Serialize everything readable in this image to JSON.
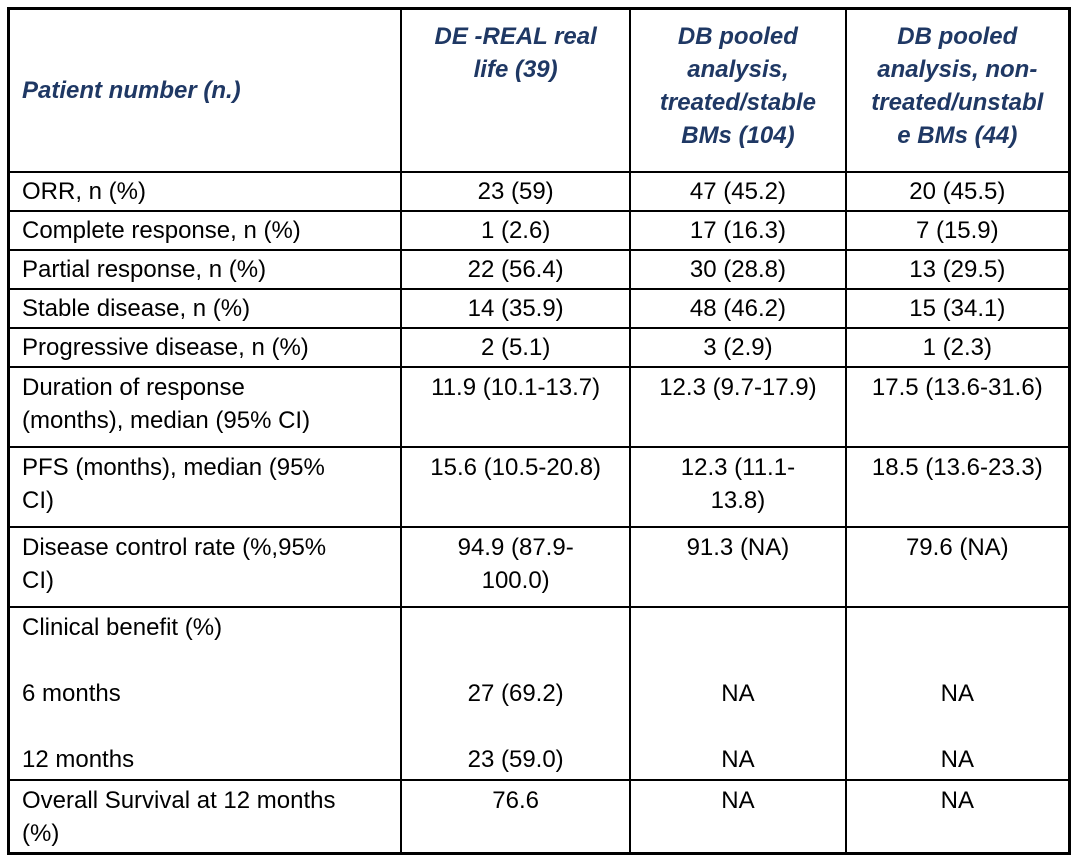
{
  "table": {
    "header": {
      "col1": "Patient number (n.)",
      "col2": "DE -REAL real\nlife (39)",
      "col3": "DB pooled\nanalysis,\ntreated/stable\nBMs (104)",
      "col4": "DB pooled\nanalysis, non-\ntreated/unstabl\ne BMs (44)"
    },
    "rows": [
      {
        "label": "ORR, n (%)",
        "values": [
          "23 (59)",
          "47 (45.2)",
          "20 (45.5)"
        ]
      },
      {
        "label": "Complete response, n (%)",
        "values": [
          "1 (2.6)",
          "17 (16.3)",
          "7 (15.9)"
        ]
      },
      {
        "label": "Partial response, n (%)",
        "values": [
          "22 (56.4)",
          "30 (28.8)",
          "13 (29.5)"
        ]
      },
      {
        "label": "Stable disease, n (%)",
        "values": [
          "14 (35.9)",
          "48 (46.2)",
          "15 (34.1)"
        ]
      },
      {
        "label": "Progressive disease, n (%)",
        "values": [
          "2 (5.1)",
          "3 (2.9)",
          "1 (2.3)"
        ]
      },
      {
        "label": "Duration of response\n(months), median (95% CI)",
        "values": [
          "11.9 (10.1-13.7)",
          "12.3 (9.7-17.9)",
          "17.5 (13.6-31.6)"
        ]
      },
      {
        "label": "PFS (months), median (95%\nCI)",
        "values": [
          "15.6 (10.5-20.8)",
          "12.3 (11.1-\n13.8)",
          "18.5 (13.6-23.3)"
        ]
      },
      {
        "label": "Disease control rate (%,95%\nCI)",
        "values": [
          "94.9 (87.9-\n100.0)",
          "91.3 (NA)",
          "79.6 (NA)"
        ]
      },
      {
        "label": "Clinical benefit (%)\n\n6 months\n\n12 months",
        "values": [
          "\n\n27 (69.2)\n\n23 (59.0)",
          "\n\nNA\n\nNA",
          "\n\nNA\n\nNA"
        ]
      },
      {
        "label": "Overall Survival at 12 months\n(%)",
        "values": [
          "76.6",
          "NA",
          "NA"
        ]
      }
    ]
  },
  "colors": {
    "header_text": "#1F3864",
    "body_text": "#000000",
    "border": "#000000",
    "background": "#FFFFFF"
  }
}
